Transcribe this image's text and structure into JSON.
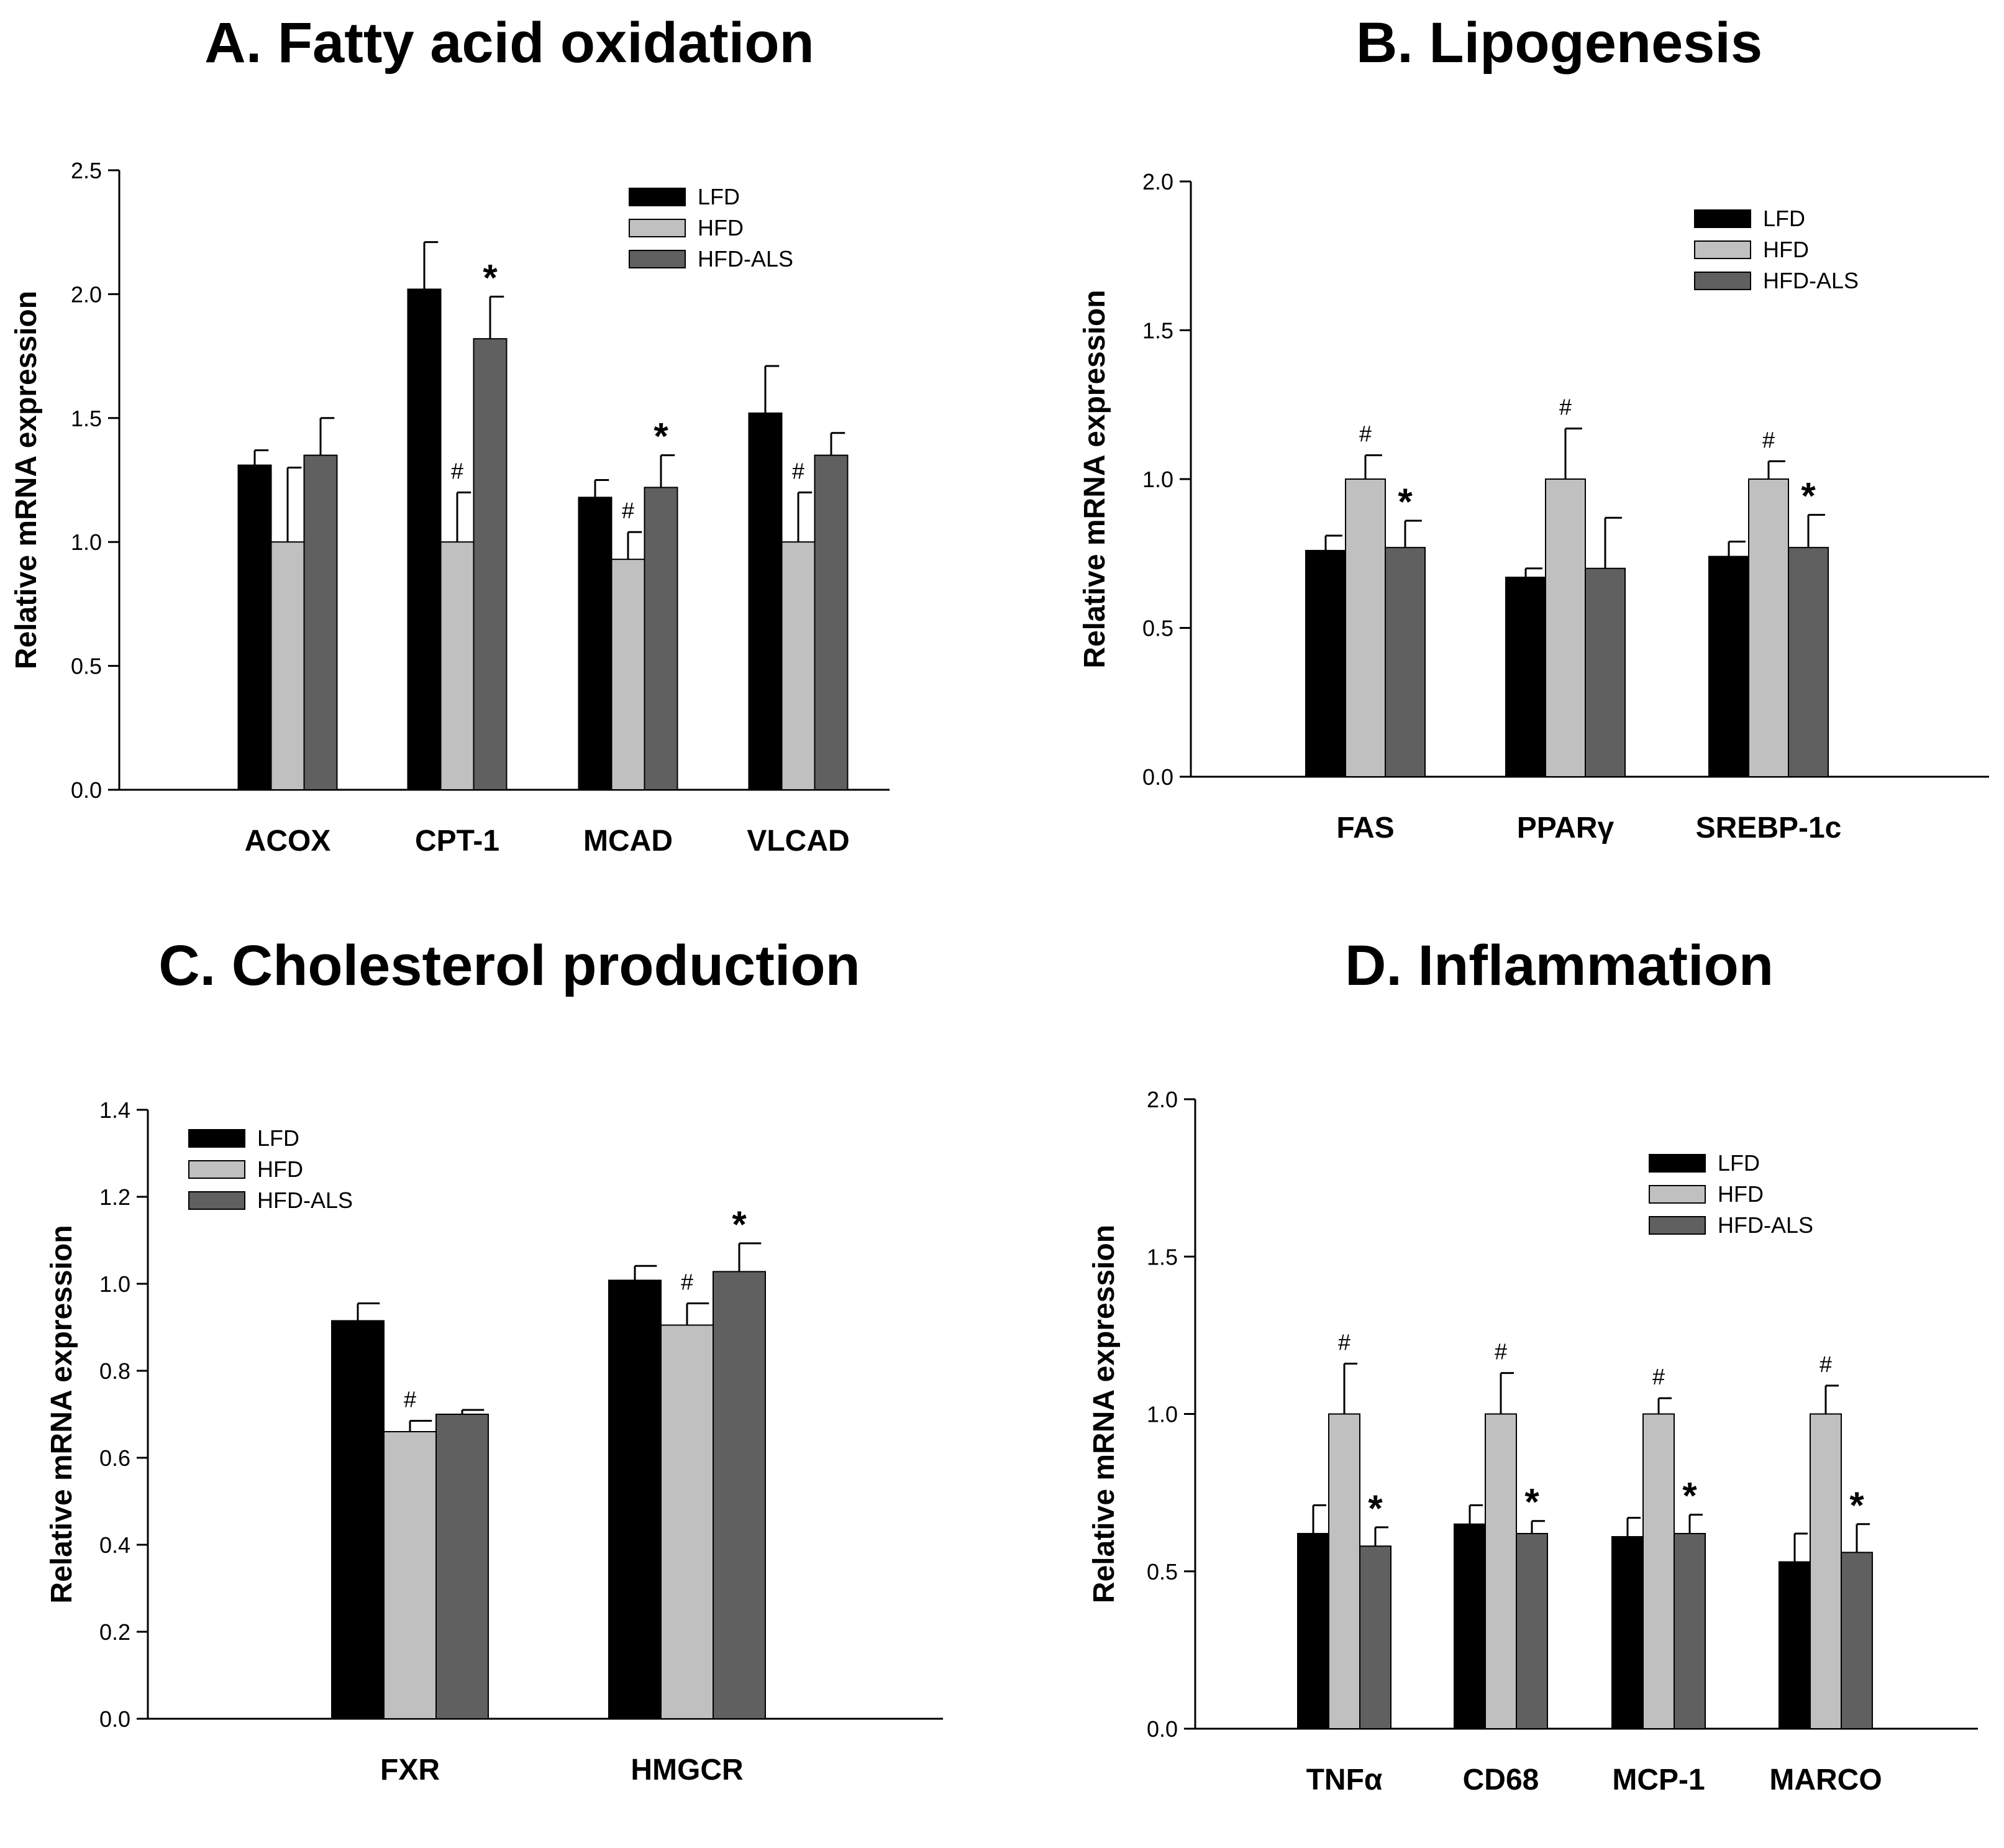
{
  "colors": {
    "LFD": "#000000",
    "HFD": "#c0c0c0",
    "HFD-ALS": "#606060"
  },
  "chart_data": [
    {
      "type": "bar",
      "title": "A. Fatty acid oxidation",
      "ylabel": "Relative mRNA expression",
      "xlabel": "",
      "ylim": [
        0,
        2.5
      ],
      "yticks": [
        "0.0",
        "0.5",
        "1.0",
        "1.5",
        "2.0",
        "2.5"
      ],
      "grid": false,
      "legend_position": "top-right",
      "categories": [
        "ACOX",
        "CPT-1",
        "MCAD",
        "VLCAD"
      ],
      "series": [
        {
          "name": "LFD",
          "values": [
            1.31,
            2.02,
            1.18,
            1.52
          ],
          "errors": [
            0.06,
            0.19,
            0.07,
            0.19
          ]
        },
        {
          "name": "HFD",
          "values": [
            1.0,
            1.0,
            0.93,
            1.0
          ],
          "errors": [
            0.3,
            0.2,
            0.11,
            0.2
          ]
        },
        {
          "name": "HFD-ALS",
          "values": [
            1.35,
            1.82,
            1.22,
            1.35
          ],
          "errors": [
            0.15,
            0.17,
            0.13,
            0.09
          ]
        }
      ],
      "annotations": [
        {
          "category": 1,
          "series": 1,
          "text": "#"
        },
        {
          "category": 1,
          "series": 2,
          "text": "*"
        },
        {
          "category": 2,
          "series": 1,
          "text": "#"
        },
        {
          "category": 2,
          "series": 2,
          "text": "*"
        },
        {
          "category": 3,
          "series": 1,
          "text": "#"
        }
      ]
    },
    {
      "type": "bar",
      "title": "B. Lipogenesis",
      "ylabel": "Relative mRNA expression",
      "xlabel": "",
      "ylim": [
        0,
        2.0
      ],
      "yticks": [
        "0.0",
        "0.5",
        "1.0",
        "1.5",
        "2.0"
      ],
      "grid": false,
      "legend_position": "top-right",
      "categories": [
        "FAS",
        "PPARγ",
        "SREBP-1c"
      ],
      "series": [
        {
          "name": "LFD",
          "values": [
            0.76,
            0.67,
            0.74
          ],
          "errors": [
            0.05,
            0.03,
            0.05
          ]
        },
        {
          "name": "HFD",
          "values": [
            1.0,
            1.0,
            1.0
          ],
          "errors": [
            0.08,
            0.17,
            0.06
          ]
        },
        {
          "name": "HFD-ALS",
          "values": [
            0.77,
            0.7,
            0.77
          ],
          "errors": [
            0.09,
            0.17,
            0.11
          ]
        }
      ],
      "annotations": [
        {
          "category": 0,
          "series": 1,
          "text": "#"
        },
        {
          "category": 0,
          "series": 2,
          "text": "*"
        },
        {
          "category": 1,
          "series": 1,
          "text": "#"
        },
        {
          "category": 2,
          "series": 1,
          "text": "#"
        },
        {
          "category": 2,
          "series": 2,
          "text": "*"
        }
      ]
    },
    {
      "type": "bar",
      "title": "C. Cholesterol production",
      "ylabel": "Relative mRNA expression",
      "xlabel": "",
      "ylim": [
        0,
        1.4
      ],
      "yticks": [
        "0.0",
        "0.2",
        "0.4",
        "0.6",
        "0.8",
        "1.0",
        "1.2",
        "1.4"
      ],
      "grid": false,
      "legend_position": "top-left",
      "categories": [
        "FXR",
        "HMGCR"
      ],
      "series": [
        {
          "name": "LFD",
          "values": [
            0.915,
            1.008
          ],
          "errors": [
            0.04,
            0.033
          ]
        },
        {
          "name": "HFD",
          "values": [
            0.66,
            0.905
          ],
          "errors": [
            0.025,
            0.05
          ]
        },
        {
          "name": "HFD-ALS",
          "values": [
            0.7,
            1.028
          ],
          "errors": [
            0.01,
            0.065
          ]
        }
      ],
      "annotations": [
        {
          "category": 0,
          "series": 1,
          "text": "#"
        },
        {
          "category": 1,
          "series": 1,
          "text": "#"
        },
        {
          "category": 1,
          "series": 2,
          "text": "*"
        }
      ]
    },
    {
      "type": "bar",
      "title": "D. Inflammation",
      "ylabel": "Relative mRNA expression",
      "xlabel": "",
      "ylim": [
        0,
        2.0
      ],
      "yticks": [
        "0.0",
        "0.5",
        "1.0",
        "1.5",
        "2.0"
      ],
      "grid": false,
      "legend_position": "top-right",
      "categories": [
        "TNFα",
        "CD68",
        "MCP-1",
        "MARCO"
      ],
      "series": [
        {
          "name": "LFD",
          "values": [
            0.62,
            0.65,
            0.61,
            0.53
          ],
          "errors": [
            0.09,
            0.06,
            0.06,
            0.09
          ]
        },
        {
          "name": "HFD",
          "values": [
            1.0,
            1.0,
            1.0,
            1.0
          ],
          "errors": [
            0.16,
            0.13,
            0.05,
            0.09
          ]
        },
        {
          "name": "HFD-ALS",
          "values": [
            0.58,
            0.62,
            0.62,
            0.56
          ],
          "errors": [
            0.06,
            0.04,
            0.06,
            0.09
          ]
        }
      ],
      "annotations": [
        {
          "category": 0,
          "series": 1,
          "text": "#"
        },
        {
          "category": 0,
          "series": 2,
          "text": "*"
        },
        {
          "category": 1,
          "series": 1,
          "text": "#"
        },
        {
          "category": 1,
          "series": 2,
          "text": "*"
        },
        {
          "category": 2,
          "series": 1,
          "text": "#"
        },
        {
          "category": 2,
          "series": 2,
          "text": "*"
        },
        {
          "category": 3,
          "series": 1,
          "text": "#"
        },
        {
          "category": 3,
          "series": 2,
          "text": "*"
        }
      ]
    }
  ]
}
